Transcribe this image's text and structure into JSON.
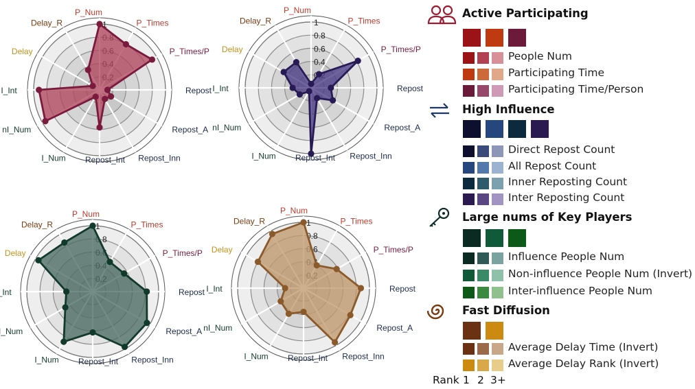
{
  "chart_data": [
    {
      "type": "radar",
      "axes": [
        "P_Num",
        "P_Times",
        "P_Times/P",
        "Repost",
        "Repost_A",
        "Repost_Inn",
        "Repost_Int",
        "I_Num",
        "nI_Num",
        "I_Int",
        "Delay",
        "Delay_R"
      ],
      "axis_colors": [
        "#c0392b",
        "#c0392b",
        "#7a1a3d",
        "#1b2a4a",
        "#1b2a4a",
        "#1b2a4a",
        "#1b2a4a",
        "#123a2a",
        "#123a2a",
        "#123a2a",
        "#c8921a",
        "#7a3a10"
      ],
      "ticks": [
        "0.2",
        "0.4",
        "0.6",
        "0.8",
        "1"
      ],
      "rlim": [
        0,
        1
      ],
      "values": [
        1.0,
        0.8,
        0.92,
        0.12,
        0.2,
        0.16,
        0.57,
        0.12,
        0.95,
        0.92,
        0.12,
        0.35
      ],
      "fill": "#b1475f",
      "edge": "#7a1a3d"
    },
    {
      "type": "radar",
      "axes": [
        "P_Num",
        "P_Times",
        "P_Times/P",
        "Repost",
        "Repost_A",
        "Repost_Inn",
        "Repost_Int",
        "I_Num",
        "nI_Num",
        "I_Int",
        "Delay",
        "Delay_R"
      ],
      "axis_colors": [
        "#c0392b",
        "#c0392b",
        "#7a1a3d",
        "#1b2a4a",
        "#1b2a4a",
        "#1b2a4a",
        "#1b2a4a",
        "#123a2a",
        "#123a2a",
        "#123a2a",
        "#c8921a",
        "#7a3a10"
      ],
      "ticks": [
        "0.2",
        "0.4",
        "0.6",
        "0.8",
        "1"
      ],
      "rlim": [
        0,
        1
      ],
      "values": [
        0.06,
        0.24,
        0.82,
        0.3,
        0.38,
        0.18,
        1.0,
        0.06,
        0.2,
        0.28,
        0.48,
        0.45
      ],
      "fill": "#4a3b85",
      "edge": "#281a55"
    },
    {
      "type": "radar",
      "axes": [
        "P_Num",
        "P_Times",
        "P_Times/P",
        "Repost",
        "Repost_A",
        "Repost_Inn",
        "Repost_Int",
        "I_Num",
        "nI_Num",
        "I_Int",
        "Delay",
        "Delay_R"
      ],
      "axis_colors": [
        "#c0392b",
        "#c0392b",
        "#7a1a3d",
        "#1b2a4a",
        "#1b2a4a",
        "#1b2a4a",
        "#1b2a4a",
        "#123a2a",
        "#123a2a",
        "#123a2a",
        "#c8921a",
        "#7a3a10"
      ],
      "ticks": [
        "0.2",
        "0.4",
        "0.6",
        "0.8",
        "1"
      ],
      "rlim": [
        0,
        1
      ],
      "values": [
        1.0,
        0.52,
        0.55,
        0.82,
        0.95,
        0.97,
        0.62,
        0.88,
        0.48,
        0.4,
        0.95,
        0.86
      ],
      "fill": "#4b6b63",
      "edge": "#123a2a"
    },
    {
      "type": "radar",
      "axes": [
        "P_Num",
        "P_Times",
        "P_Times/P",
        "Repost",
        "Repost_A",
        "Repost_Inn",
        "Repost_Int",
        "I_Num",
        "nI_Num",
        "I_Int",
        "Delay",
        "Delay_R"
      ],
      "axis_colors": [
        "#c0392b",
        "#c0392b",
        "#7a1a3d",
        "#1b2a4a",
        "#1b2a4a",
        "#1b2a4a",
        "#1b2a4a",
        "#123a2a",
        "#123a2a",
        "#123a2a",
        "#c8921a",
        "#7a3a10"
      ],
      "ticks": [
        "0.2",
        "0.4",
        "0.6",
        "0.8",
        "1"
      ],
      "rlim": [
        0,
        1
      ],
      "values": [
        1.0,
        0.4,
        0.58,
        0.87,
        0.82,
        0.95,
        0.36,
        0.45,
        0.4,
        0.28,
        0.8,
        0.95
      ],
      "fill": "#c09a6e",
      "edge": "#8b5a2b"
    }
  ],
  "legend": {
    "sections": [
      {
        "title": "Active Participating",
        "icon": "people-icon",
        "icon_color": "#9b1b30",
        "big_swatches": [
          "#9b1217",
          "#bf3a10",
          "#6b1a3a"
        ],
        "items": [
          {
            "label": "People Num",
            "swatches": [
              "#9b1217",
              "#b24251",
              "#d7909a"
            ]
          },
          {
            "label": "Participating Time",
            "swatches": [
              "#bf3a10",
              "#cc6a3a",
              "#e0a888"
            ]
          },
          {
            "label": "Participating Time/Person",
            "swatches": [
              "#6b1a3a",
              "#96496a",
              "#cf9ab5"
            ]
          }
        ]
      },
      {
        "title": "High Influence",
        "icon": "arrows-exchange-icon",
        "icon_color": "#1f3a5f",
        "big_swatches": [
          "#0c0f2e",
          "#26477e",
          "#0b2a3e",
          "#2b1a50"
        ],
        "items": [
          {
            "label": "Direct Repost Count",
            "swatches": [
              "#0c0f2e",
              "#3a4a7a",
              "#8e96b8"
            ]
          },
          {
            "label": "All Repost Count",
            "swatches": [
              "#26477e",
              "#5378ab",
              "#9bb3d0"
            ]
          },
          {
            "label": "Inner Reposting Count",
            "swatches": [
              "#0b2a3e",
              "#2e5a6c",
              "#7ca1ae"
            ]
          },
          {
            "label": "Inter Reposting Count",
            "swatches": [
              "#2b1a50",
              "#5a4683",
              "#a193c2"
            ]
          }
        ]
      },
      {
        "title": "Large nums of Key Players",
        "icon": "key-icon",
        "icon_color": "#0f2b2a",
        "big_swatches": [
          "#0a2a22",
          "#105a3a",
          "#0d5a18"
        ],
        "items": [
          {
            "label": "Influence People Num",
            "swatches": [
              "#0a2a22",
              "#2f5a55",
              "#7aa3a0"
            ]
          },
          {
            "label": "Non-influence People Num (Invert)",
            "swatches": [
              "#105a3a",
              "#3a8a68",
              "#8fc0aa"
            ]
          },
          {
            "label": "Inter-influence People Num",
            "swatches": [
              "#0d5a18",
              "#3c8a40",
              "#8fc08e"
            ]
          }
        ]
      },
      {
        "title": "Fast Diffusion",
        "icon": "spiral-icon",
        "icon_color": "#7a3a10",
        "big_swatches": [
          "#6a3212",
          "#cc8a10"
        ],
        "items": [
          {
            "label": "Average Delay Time (Invert)",
            "swatches": [
              "#6a3212",
              "#9b6a48",
              "#c9a88a"
            ]
          },
          {
            "label": "Average Delay Rank (Invert)",
            "swatches": [
              "#cc8a10",
              "#d9a848",
              "#e8cc8a"
            ]
          }
        ]
      }
    ],
    "rank": {
      "label": "Rank",
      "levels": [
        "1",
        "2",
        "3+"
      ]
    }
  }
}
